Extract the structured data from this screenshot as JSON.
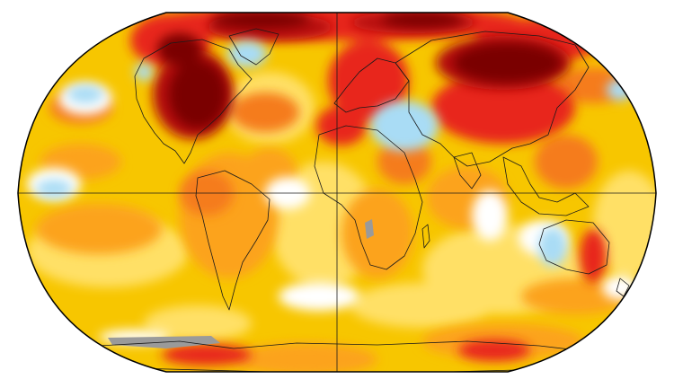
{
  "map": {
    "projection": "robinson-like",
    "kind": "global-temperature-anomaly",
    "graticule": [
      "equator",
      "prime-meridian"
    ],
    "colors": {
      "ocean_base": "#f7c600",
      "warm_light": "#ffe066",
      "warm_mid": "#fca31c",
      "warm_orange": "#f57c1f",
      "hot": "#e8261f",
      "very_hot": "#b50d0d",
      "extreme": "#7a0000",
      "neutral": "#ffffff",
      "cool_light": "#d6f0ef",
      "cool_mid": "#a9dcf5",
      "cool": "#7fc2ee",
      "no_data": "#9a9a9a",
      "coastline": "#1a1a1a",
      "border": "#000000"
    }
  }
}
